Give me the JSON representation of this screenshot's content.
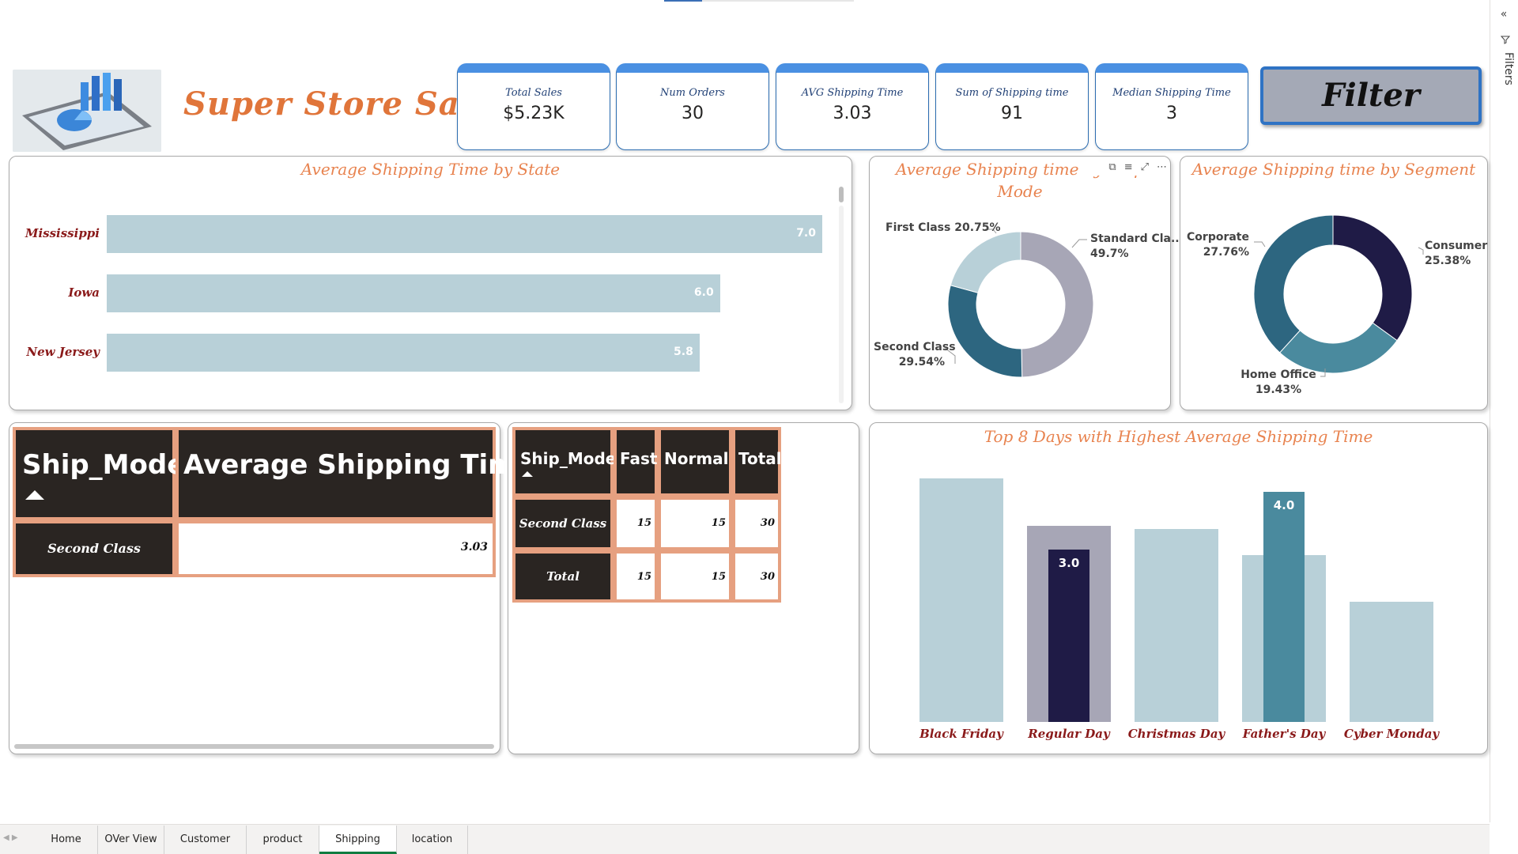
{
  "app": {
    "filters_label": "Filters"
  },
  "header": {
    "title": "Super Store Sales",
    "filter_button": "Filter"
  },
  "kpis": [
    {
      "label": "Total Sales",
      "value": "$5.23K"
    },
    {
      "label": "Num Orders",
      "value": "30"
    },
    {
      "label": "AVG Shipping Time",
      "value": "3.03"
    },
    {
      "label": "Sum of Shipping time",
      "value": "91"
    },
    {
      "label": "Median Shipping Time",
      "value": "3"
    }
  ],
  "state_chart": {
    "title": "Average Shipping Time by State",
    "chart_data": {
      "type": "bar",
      "orientation": "horizontal",
      "categories": [
        "Mississippi",
        "Iowa",
        "New Jersey"
      ],
      "values": [
        7.0,
        6.0,
        5.8
      ],
      "value_labels": [
        "7.0",
        "6.0",
        "5.8"
      ],
      "color": "#b8d0d8"
    }
  },
  "shipmode_donut": {
    "title_line1": "Average Shipping time by Ship",
    "title_line2": "Mode",
    "chart_data": {
      "type": "pie",
      "donut": true,
      "slices": [
        {
          "label": "Standard Cla...",
          "pct": "49.7%",
          "value": 49.7,
          "color": "#a7a6b6"
        },
        {
          "label": "Second Class",
          "pct": "29.54%",
          "value": 29.54,
          "color": "#2d6680"
        },
        {
          "label": "First Class",
          "pct": "20.75%",
          "value": 20.75,
          "color": "#b8d0d8"
        }
      ]
    }
  },
  "segment_donut": {
    "title": "Average Shipping time by Segment",
    "chart_data": {
      "type": "pie",
      "donut": true,
      "slices": [
        {
          "label": "Consumer",
          "pct": "25.38%",
          "value": 25.38,
          "color": "#1f1b46"
        },
        {
          "label": "Home Office",
          "pct": "19.43%",
          "value": 19.43,
          "color": "#4a8a9e"
        },
        {
          "label": "Corporate",
          "pct": "27.76%",
          "value": 27.76,
          "color": "#2d6680"
        }
      ]
    }
  },
  "table1": {
    "headers": [
      "Ship_Mode",
      "Average Shipping Time"
    ],
    "rows": [
      [
        "Second Class",
        "3.03"
      ]
    ]
  },
  "table2": {
    "headers": [
      "Ship_Mode",
      "Fast",
      "Normal",
      "Total"
    ],
    "rows": [
      [
        "Second Class",
        "15",
        "15",
        "30"
      ],
      [
        "Total",
        "15",
        "15",
        "30"
      ]
    ]
  },
  "days_chart": {
    "title": "Top 8 Days with Highest Average Shipping Time",
    "chart_data": {
      "type": "bar",
      "categories": [
        "Black Friday",
        "Regular Day",
        "Christmas Day",
        "Father's Day",
        "Cyber Monday"
      ],
      "series": [
        {
          "values": [
            6.7,
            5.4,
            5.3,
            4.6,
            3.3
          ],
          "color": "#b8d0d8"
        },
        {
          "values": [
            null,
            3.0,
            null,
            4.0,
            null
          ],
          "color": "#1f1b46",
          "value_labels": [
            null,
            "3.0",
            null,
            "4.0",
            null
          ]
        }
      ],
      "highlight_background": {
        "Regular Day": "#a7a6b6"
      },
      "highlight_colors": {
        "Regular Day": "#1f1b46",
        "Father's Day": "#4a8a9e"
      }
    }
  },
  "tabs": [
    "Home",
    "OVer View",
    "Customer",
    "product",
    "Shipping",
    "location"
  ],
  "active_tab": "Shipping"
}
